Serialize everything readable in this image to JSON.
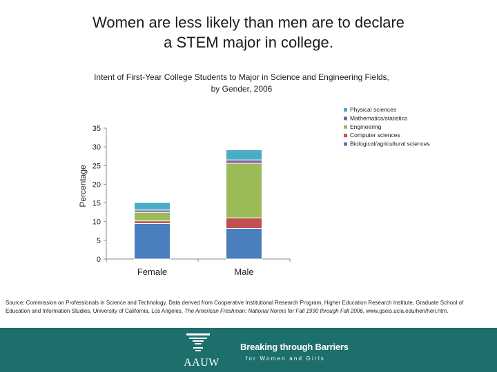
{
  "slide": {
    "title_line1": "Women are less likely than men are to declare",
    "title_line2": "a STEM major in college."
  },
  "chart_data": {
    "type": "bar",
    "stacked": true,
    "title_line1": "Intent of First-Year College Students to Major in Science and Engineering Fields,",
    "title_line2": "by Gender, 2006",
    "xlabel": "",
    "ylabel": "Percentage",
    "ylim": [
      0,
      35
    ],
    "yticks": [
      0,
      5,
      10,
      15,
      20,
      25,
      30,
      35
    ],
    "grid": false,
    "legend_position": "top-right",
    "categories": [
      "Female",
      "Male"
    ],
    "series": [
      {
        "name": "Biological/agricultural sciences",
        "color": "#4a7ebf",
        "values": [
          9.5,
          8.2
        ]
      },
      {
        "name": "Computer sciences",
        "color": "#c0504d",
        "values": [
          0.7,
          2.8
        ]
      },
      {
        "name": "Engineering",
        "color": "#9bbb59",
        "values": [
          2.3,
          14.6
        ]
      },
      {
        "name": "Mathematics/statistics",
        "color": "#8064a2",
        "values": [
          0.6,
          0.9
        ]
      },
      {
        "name": "Physical sciences",
        "color": "#4bacc6",
        "values": [
          2.0,
          2.7
        ]
      }
    ],
    "legend_order": [
      "Physical sciences",
      "Mathematics/statistics",
      "Engineering",
      "Computer sciences",
      "Biological/agricultural sciences"
    ]
  },
  "source": {
    "prefix": "Source: Commission on Professionals in Science and Technology. Data derived from Cooperative Institutional Research Program, Higher Education Research Institute, Graduate School of Education and Information Studies, University of California, Los Angeles, ",
    "italic": "The American Freshman: National Norms for Fall 1990 through Fall 2006",
    "suffix": ", www.gseis.ucla.edu/heri/heri.htm."
  },
  "footer": {
    "logo_text": "AAUW",
    "tagline_main": "Breaking through Barriers",
    "tagline_sub": "for Women and Girls",
    "bg_color": "#1d6f6c"
  }
}
